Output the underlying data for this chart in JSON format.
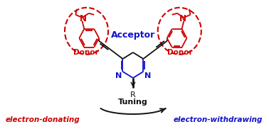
{
  "bg_color": "#ffffff",
  "red_color": "#cc0000",
  "blue_color": "#1111cc",
  "black_color": "#111111",
  "acceptor_text": "Acceptor",
  "donor_text": "Donor",
  "r_label": "R",
  "tuning_text": "Tuning",
  "ed_text": "electron-donating",
  "ew_text": "electron-withdrawing",
  "fig_width": 3.78,
  "fig_height": 1.82
}
